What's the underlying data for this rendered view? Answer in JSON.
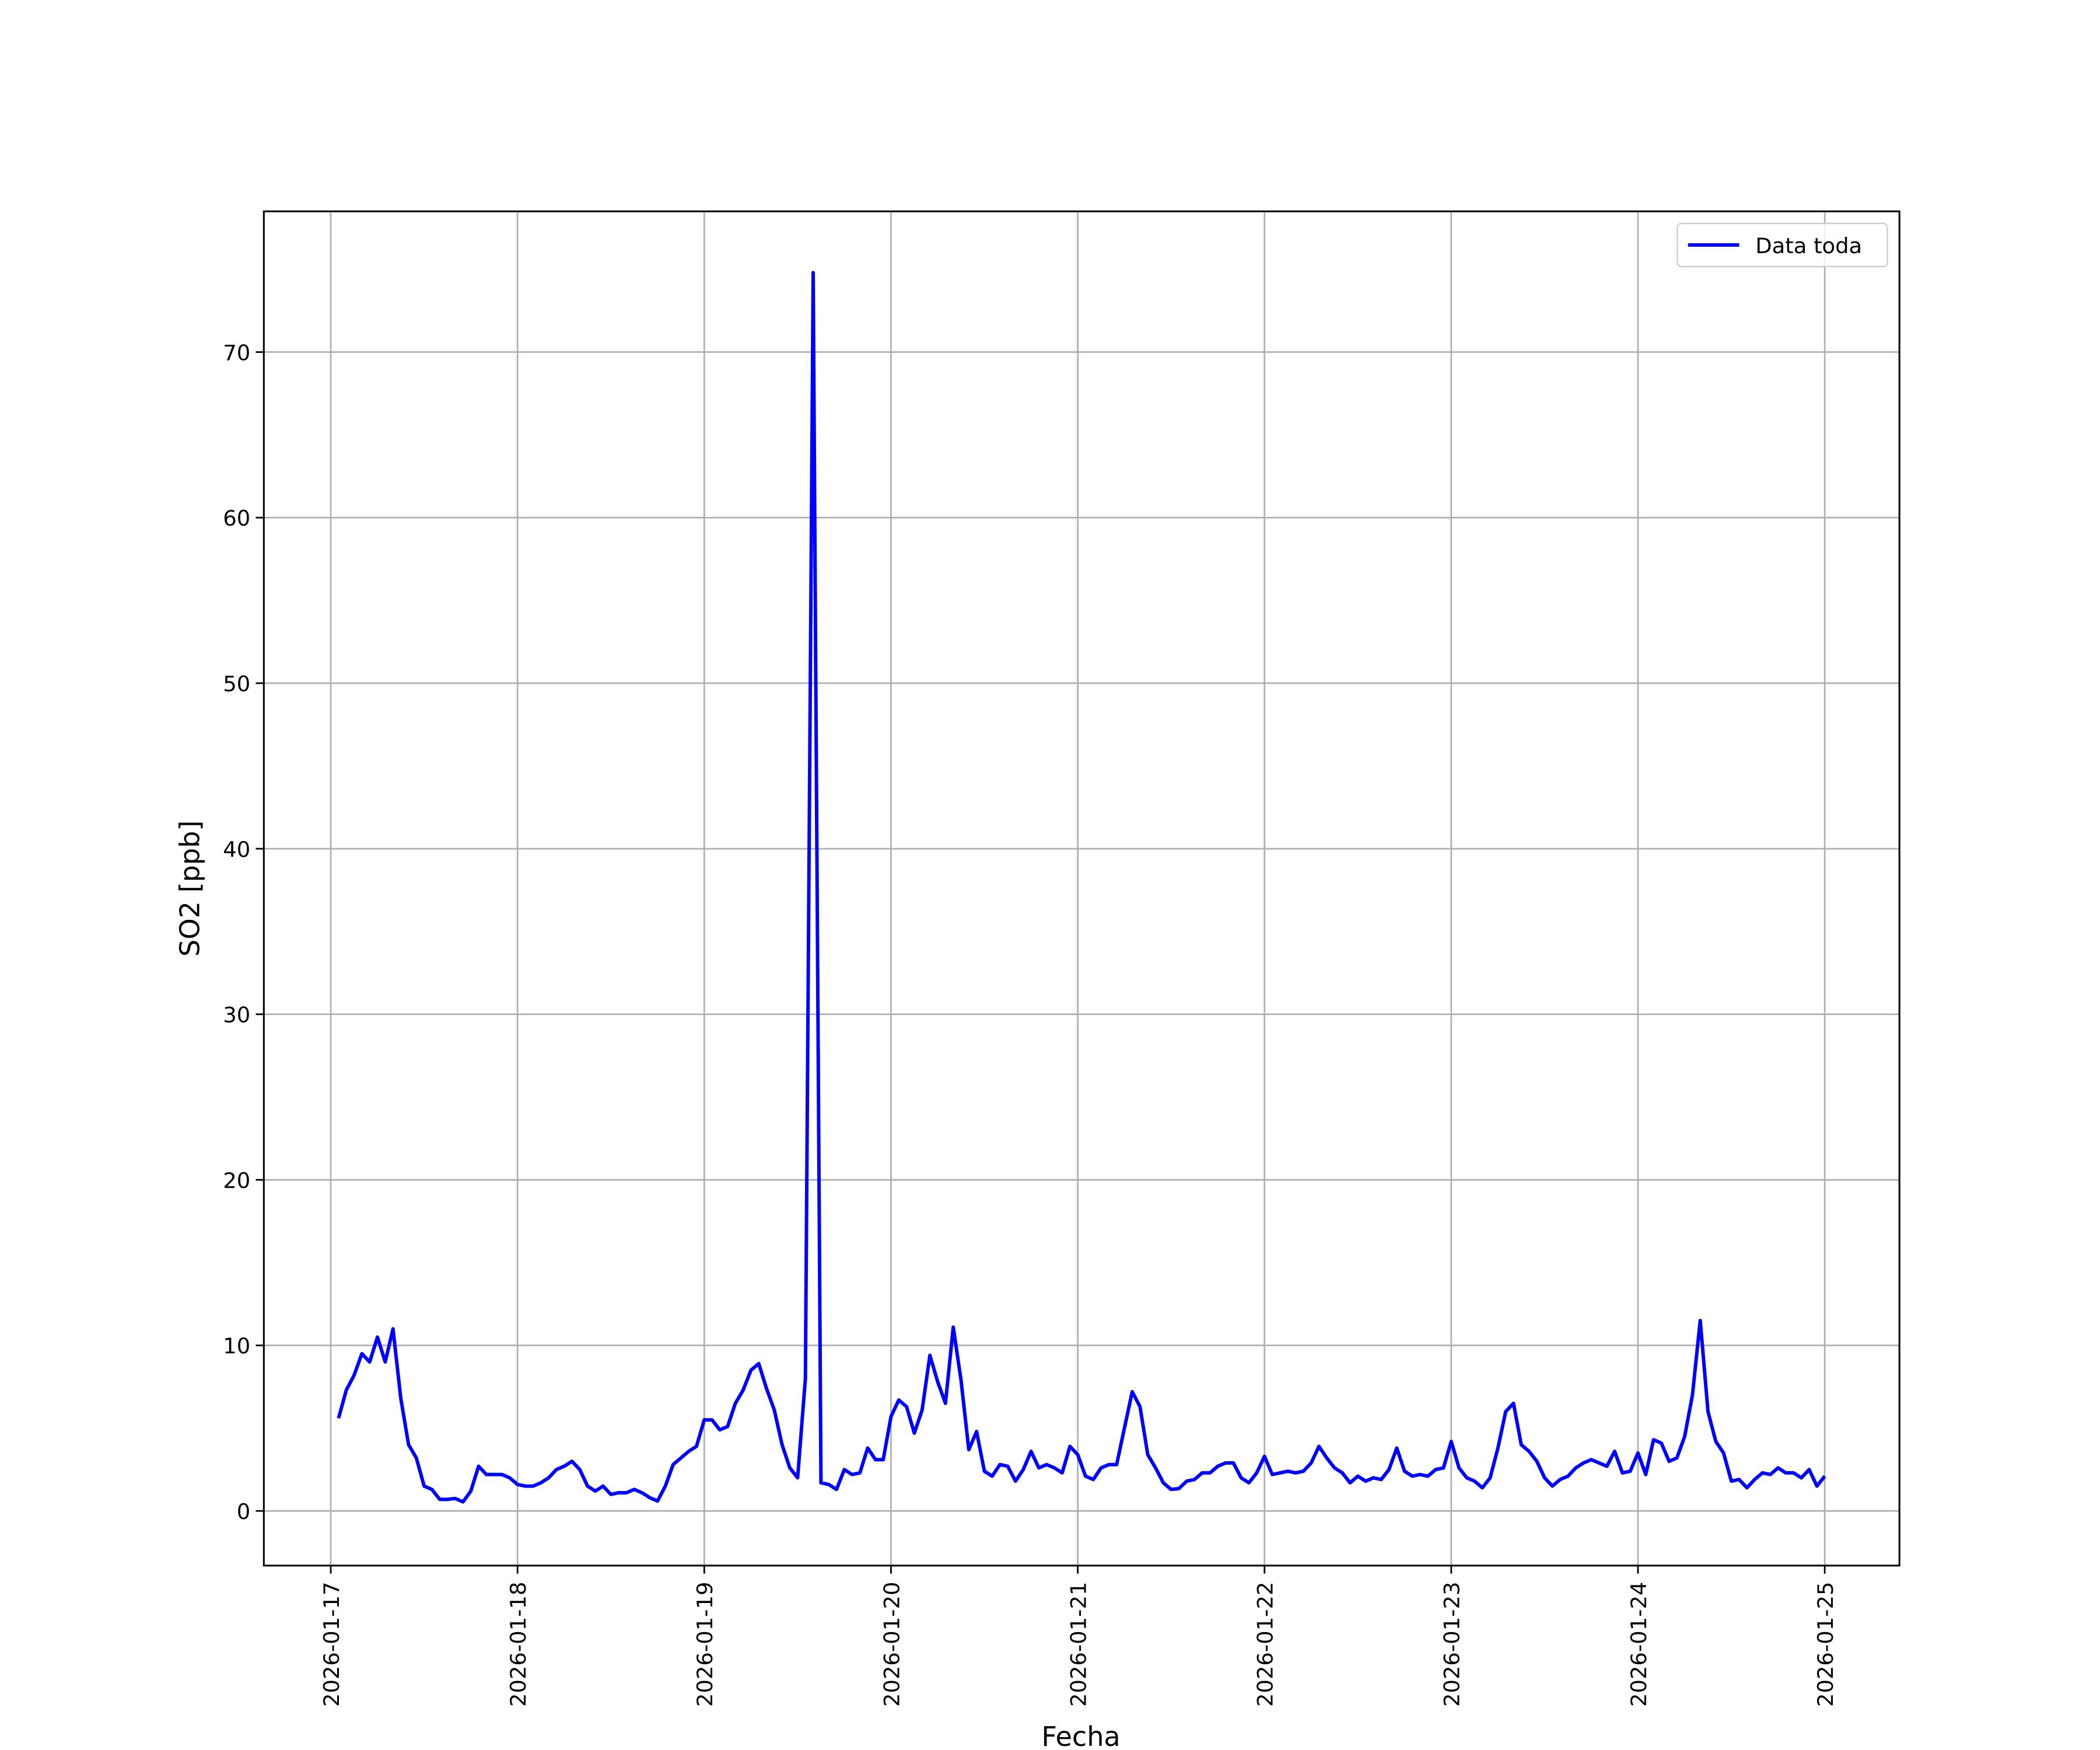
{
  "chart_data": {
    "type": "line",
    "x_label": "Fecha",
    "y_label": "SO2 [ppb]",
    "legend": "upper right",
    "grid": true,
    "xlim": [
      -8.6,
      201.6
    ],
    "xticks": [
      {
        "value": 0,
        "label": "2026-01-17"
      },
      {
        "value": 24,
        "label": "2026-01-18"
      },
      {
        "value": 48,
        "label": "2026-01-19"
      },
      {
        "value": 72,
        "label": "2026-01-20"
      },
      {
        "value": 96,
        "label": "2026-01-21"
      },
      {
        "value": 120,
        "label": "2026-01-22"
      },
      {
        "value": 144,
        "label": "2026-01-23"
      },
      {
        "value": 168,
        "label": "2026-01-24"
      },
      {
        "value": 192,
        "label": "2026-01-25"
      }
    ],
    "ylim": [
      -3.3,
      78.5
    ],
    "yticks": [
      0,
      10,
      20,
      30,
      40,
      50,
      60,
      70
    ],
    "x": [
      1,
      2,
      3,
      4,
      5,
      6,
      7,
      8,
      9,
      10,
      11,
      12,
      13,
      14,
      15,
      16,
      17,
      18,
      19,
      20,
      21,
      22,
      23,
      24,
      25,
      26,
      27,
      28,
      29,
      30,
      31,
      32,
      33,
      34,
      35,
      36,
      37,
      38,
      39,
      40,
      41,
      42,
      43,
      44,
      45,
      46,
      47,
      48,
      49,
      50,
      51,
      52,
      53,
      54,
      55,
      56,
      57,
      58,
      59,
      60,
      61,
      62,
      63,
      64,
      65,
      66,
      67,
      68,
      69,
      70,
      71,
      72,
      73,
      74,
      75,
      76,
      77,
      78,
      79,
      80,
      81,
      82,
      83,
      84,
      85,
      86,
      87,
      88,
      89,
      90,
      91,
      92,
      93,
      94,
      95,
      96,
      97,
      98,
      99,
      100,
      101,
      102,
      103,
      104,
      105,
      106,
      107,
      108,
      109,
      110,
      111,
      112,
      113,
      114,
      115,
      116,
      117,
      118,
      119,
      120,
      121,
      122,
      123,
      124,
      125,
      126,
      127,
      128,
      129,
      130,
      131,
      132,
      133,
      134,
      135,
      136,
      137,
      138,
      139,
      140,
      141,
      142,
      143,
      144,
      145,
      146,
      147,
      148,
      149,
      150,
      151,
      152,
      153,
      154,
      155,
      156,
      157,
      158,
      159,
      160,
      161,
      162,
      163,
      164,
      165,
      166,
      167,
      168,
      169,
      170,
      171,
      172,
      173,
      174,
      175,
      176,
      177,
      178,
      179,
      180,
      181,
      182,
      183,
      184,
      185,
      186,
      187,
      188,
      189,
      190,
      191,
      192
    ],
    "series": [
      {
        "name": "Data toda",
        "color": "#0000ff",
        "values": [
          5.6,
          7.3,
          8.2,
          9.5,
          9.0,
          10.5,
          9.0,
          11.0,
          6.8,
          4.0,
          3.2,
          1.5,
          1.3,
          0.7,
          0.7,
          0.75,
          0.55,
          1.2,
          2.7,
          2.2,
          2.2,
          2.2,
          2.0,
          1.6,
          1.5,
          1.5,
          1.7,
          2.0,
          2.5,
          2.7,
          3.0,
          2.5,
          1.5,
          1.2,
          1.5,
          1.0,
          1.1,
          1.1,
          1.3,
          1.1,
          0.8,
          0.6,
          1.5,
          2.8,
          3.2,
          3.6,
          3.9,
          5.5,
          5.5,
          4.9,
          5.1,
          6.5,
          7.3,
          8.5,
          8.9,
          7.4,
          6.1,
          4.0,
          2.6,
          2.0,
          8.0,
          74.8,
          1.7,
          1.6,
          1.3,
          2.5,
          2.2,
          2.3,
          3.8,
          3.1,
          3.1,
          5.7,
          6.7,
          6.3,
          4.7,
          6.1,
          9.4,
          7.8,
          6.5,
          11.1,
          7.9,
          3.7,
          4.8,
          2.4,
          2.1,
          2.8,
          2.7,
          1.8,
          2.5,
          3.6,
          2.6,
          2.8,
          2.6,
          2.3,
          3.9,
          3.4,
          2.1,
          1.9,
          2.6,
          2.8,
          2.8,
          5.0,
          7.2,
          6.3,
          3.4,
          2.6,
          1.7,
          1.3,
          1.35,
          1.8,
          1.9,
          2.3,
          2.3,
          2.7,
          2.9,
          2.9,
          2.0,
          1.7,
          2.3,
          3.3,
          2.2,
          2.3,
          2.4,
          2.3,
          2.4,
          2.9,
          3.9,
          3.2,
          2.6,
          2.3,
          1.7,
          2.1,
          1.8,
          2.0,
          1.9,
          2.5,
          3.8,
          2.4,
          2.1,
          2.2,
          2.1,
          2.5,
          2.6,
          4.2,
          2.6,
          2.0,
          1.8,
          1.4,
          2.0,
          3.8,
          6.0,
          6.5,
          4.0,
          3.6,
          3.0,
          2.0,
          1.5,
          1.9,
          2.1,
          2.6,
          2.9,
          3.1,
          2.9,
          2.7,
          3.6,
          2.3,
          2.4,
          3.5,
          2.2,
          4.3,
          4.1,
          3.0,
          3.2,
          4.5,
          7.0,
          11.5,
          6.0,
          4.2,
          3.5,
          1.8,
          1.9,
          1.4,
          1.9,
          2.3,
          2.2,
          2.6,
          2.3,
          2.3,
          2.0,
          2.5,
          1.5,
          2.1
        ]
      }
    ]
  }
}
